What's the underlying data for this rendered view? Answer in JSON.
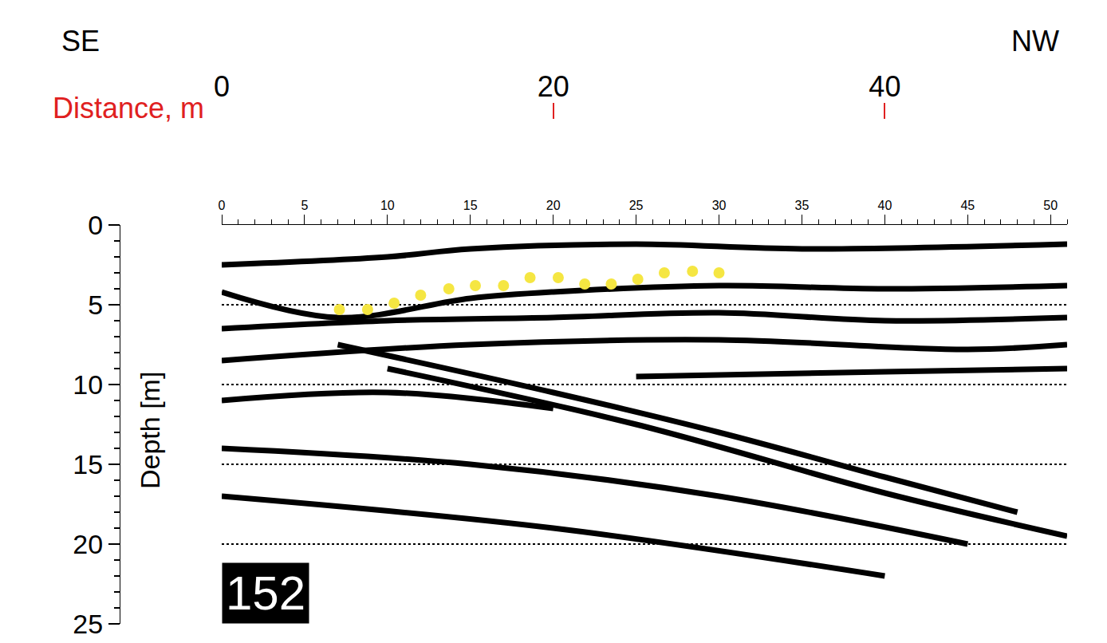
{
  "chart_data": {
    "type": "line",
    "direction_left": "SE",
    "direction_right": "NW",
    "x2_title": "Distance, m",
    "y_title": "Depth [m]",
    "label": "152",
    "xlim": [
      0,
      51
    ],
    "xticks": [
      0,
      5,
      10,
      15,
      20,
      25,
      30,
      35,
      40,
      45,
      50
    ],
    "x2ticks": [
      0,
      20,
      40
    ],
    "ylim": [
      25,
      0
    ],
    "yticks": [
      0,
      5,
      10,
      15,
      20,
      25
    ],
    "grid": true,
    "series": [
      {
        "type": "line",
        "color": "#000000",
        "line_style": "solid",
        "x": [
          0,
          10,
          15,
          25,
          35,
          51
        ],
        "values": [
          2.5,
          2.0,
          1.5,
          1.2,
          1.5,
          1.2
        ]
      },
      {
        "type": "line",
        "color": "#000000",
        "line_style": "solid",
        "x": [
          0,
          7,
          15,
          20,
          30,
          40,
          51
        ],
        "values": [
          4.2,
          5.8,
          4.6,
          4.2,
          3.8,
          4.0,
          3.8
        ]
      },
      {
        "type": "line",
        "color": "#000000",
        "line_style": "solid",
        "x": [
          0,
          10,
          20,
          30,
          40,
          51
        ],
        "values": [
          6.5,
          6.0,
          5.8,
          5.5,
          6.0,
          5.8
        ]
      },
      {
        "type": "line",
        "color": "#000000",
        "line_style": "solid",
        "x": [
          0,
          15,
          30,
          45,
          51
        ],
        "values": [
          8.5,
          7.5,
          7.2,
          7.8,
          7.5
        ]
      },
      {
        "type": "line",
        "color": "#000000",
        "line_style": "solid",
        "x": [
          7,
          20,
          30,
          40,
          48
        ],
        "values": [
          7.5,
          10.5,
          13.0,
          15.8,
          18.0
        ]
      },
      {
        "type": "line",
        "color": "#000000",
        "line_style": "solid",
        "x": [
          10,
          25,
          40,
          51
        ],
        "values": [
          9.0,
          12.5,
          16.8,
          19.5
        ]
      },
      {
        "type": "line",
        "color": "#000000",
        "line_style": "solid",
        "x": [
          0,
          10,
          20
        ],
        "values": [
          11.0,
          10.5,
          11.5
        ]
      },
      {
        "type": "line",
        "color": "#000000",
        "line_style": "solid",
        "x": [
          25,
          40,
          51
        ],
        "values": [
          9.5,
          9.2,
          9.0
        ]
      },
      {
        "type": "line",
        "color": "#000000",
        "line_style": "solid",
        "x": [
          0,
          15,
          30,
          45
        ],
        "values": [
          14.0,
          15.0,
          17.0,
          20.0
        ]
      },
      {
        "type": "line",
        "color": "#000000",
        "line_style": "solid",
        "x": [
          0,
          20,
          40
        ],
        "values": [
          17.0,
          19.0,
          22.0
        ]
      },
      {
        "type": "scatter",
        "color": "#f5e642",
        "marker": "circle",
        "x": [
          7.1,
          8.8,
          10.4,
          12.0,
          13.7,
          15.3,
          17.0,
          18.6,
          20.3,
          21.9,
          23.5,
          25.1,
          26.7,
          28.4,
          30.0
        ],
        "values": [
          5.3,
          5.3,
          4.9,
          4.4,
          4.0,
          3.8,
          3.8,
          3.3,
          3.3,
          3.7,
          3.7,
          3.4,
          3.0,
          2.9,
          3.0
        ]
      }
    ]
  }
}
